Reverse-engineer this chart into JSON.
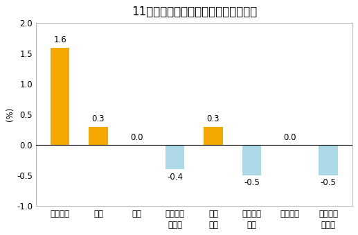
{
  "title": "11月份居民消费价格分类别环比涨跌幅",
  "ylabel": "(%)",
  "categories": [
    "食品烟酒",
    "衣着",
    "居住",
    "生活用品\n及服务",
    "交通\n通信",
    "教育文化\n娱乐",
    "医疗保健",
    "其他用品\n及服务"
  ],
  "values": [
    1.6,
    0.3,
    0.0,
    -0.4,
    0.3,
    -0.5,
    0.0,
    -0.5
  ],
  "bar_color_positive": "#F5A800",
  "bar_color_negative": "#ADD8E6",
  "ylim": [
    -1.0,
    2.0
  ],
  "yticks": [
    -1.0,
    -0.5,
    0.0,
    0.5,
    1.0,
    1.5,
    2.0
  ],
  "background_color": "#ffffff",
  "title_fontsize": 12,
  "label_fontsize": 8.5,
  "tick_fontsize": 8.5
}
